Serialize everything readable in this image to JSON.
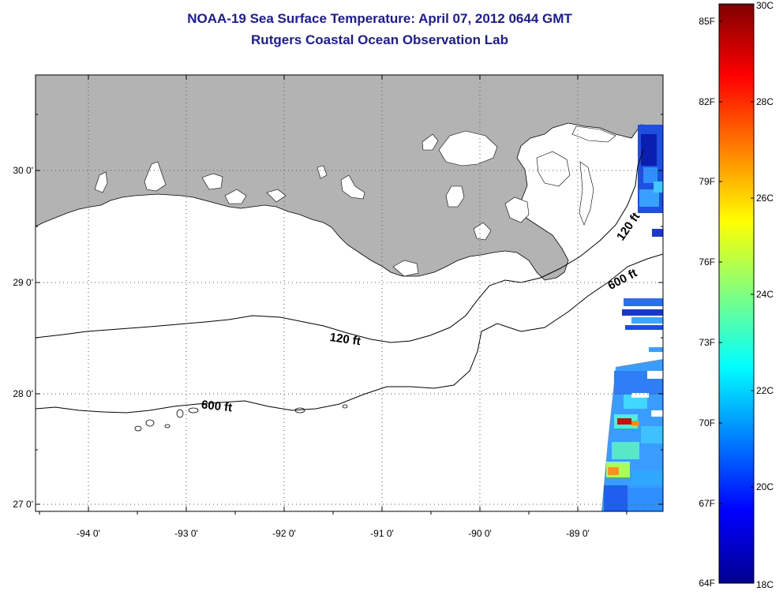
{
  "header": {
    "title": "NOAA-19 Sea Surface Temperature:  April 07, 2012 0644 GMT",
    "subtitle": "Rutgers Coastal Ocean Observation Lab"
  },
  "map": {
    "lat_labels": [
      "30 0'",
      "29 0'",
      "28 0'",
      "27 0'"
    ],
    "lon_labels": [
      "-94 0'",
      "-93 0'",
      "-92 0'",
      "-91 0'",
      "-90 0'",
      "-89 0'"
    ],
    "contours": {
      "c120_a": "120 ft",
      "c120_b": "120 ft",
      "c600_a": "600 ft",
      "c600_b": "600 ft"
    },
    "colors": {
      "land": "#b3b3b3",
      "ocean": "#ffffff",
      "frame": "#000000"
    }
  },
  "colorbar": {
    "fahrenheit_labels": [
      "85F",
      "82F",
      "79F",
      "76F",
      "73F",
      "70F",
      "67F",
      "64F"
    ],
    "celsius_labels": [
      "30C",
      "28C",
      "26C",
      "24C",
      "22C",
      "20C",
      "18C"
    ],
    "min_c": 18,
    "max_c": 30,
    "colormap": "jet"
  }
}
